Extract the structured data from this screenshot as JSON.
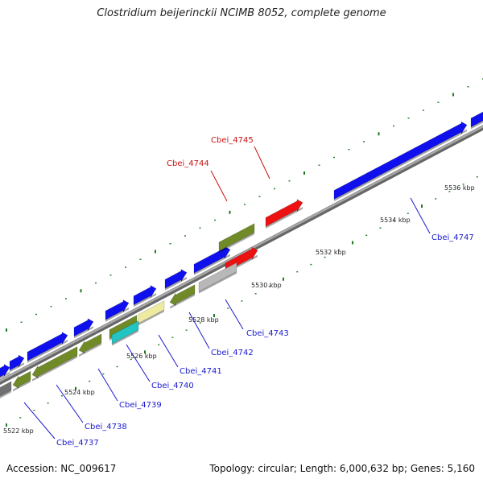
{
  "title": "Clostridium beijerinckii NCIMB 8052, complete genome",
  "footer": {
    "accession": "Accession: NC_009617",
    "stats": "Topology: circular; Length: 6,000,632 bp; Genes: 5,160"
  },
  "colors": {
    "backbone": "#888888",
    "forward_gene": "#1010ee",
    "highlight_gene": "#ee1111",
    "olive_gene": "#6f8a26",
    "grey_gene": "#b8b8b8",
    "cyan_gene": "#22c4c4",
    "pale_gene": "#eeeaa0",
    "dark_grey_gene": "#707070",
    "tick": "#1f7a1f",
    "gene_label": "#1a1ad0",
    "highlight_label": "#cc1111"
  },
  "scale_ticks": [
    "5522 kbp",
    "5524 kbp",
    "5526 kbp",
    "5528 kbp",
    "5530 kbp",
    "5532 kbp",
    "5534 kbp",
    "5536 kbp"
  ],
  "gene_labels": [
    {
      "name": "Cbei_4737",
      "highlight": false
    },
    {
      "name": "Cbei_4738",
      "highlight": false
    },
    {
      "name": "Cbei_4739",
      "highlight": false
    },
    {
      "name": "Cbei_4740",
      "highlight": false
    },
    {
      "name": "Cbei_4741",
      "highlight": false
    },
    {
      "name": "Cbei_4742",
      "highlight": false
    },
    {
      "name": "Cbei_4743",
      "highlight": false
    },
    {
      "name": "Cbei_4744",
      "highlight": true
    },
    {
      "name": "Cbei_4745",
      "highlight": true
    },
    {
      "name": "Cbei_4747",
      "highlight": false
    }
  ]
}
